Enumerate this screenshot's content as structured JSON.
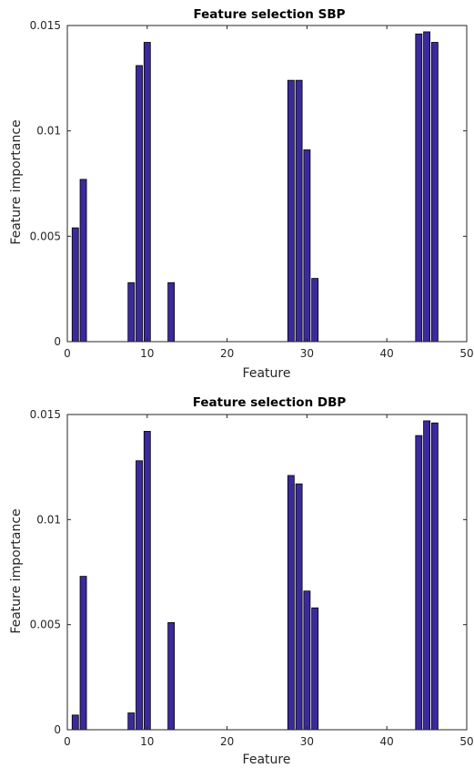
{
  "chart_data": [
    {
      "type": "bar",
      "title": "Feature selection SBP",
      "xlabel": "Feature",
      "ylabel": "Feature importance",
      "xlim": [
        0,
        50
      ],
      "ylim": [
        0,
        0.015
      ],
      "xticks": [
        0,
        10,
        20,
        30,
        40,
        50
      ],
      "yticks": [
        0,
        0.005,
        0.01,
        0.015
      ],
      "ytick_labels": [
        "0",
        "0.005",
        "0.01",
        "0.015"
      ],
      "grid": false,
      "bar_color": "#3a2a9c",
      "x": [
        1,
        2,
        8,
        9,
        10,
        13,
        28,
        29,
        30,
        31,
        44,
        45,
        46
      ],
      "values": [
        0.0054,
        0.0077,
        0.0028,
        0.0131,
        0.0142,
        0.0028,
        0.0124,
        0.0124,
        0.0091,
        0.003,
        0.0146,
        0.0147,
        0.0142
      ]
    },
    {
      "type": "bar",
      "title": "Feature selection DBP",
      "xlabel": "Feature",
      "ylabel": "Feature importance",
      "xlim": [
        0,
        50
      ],
      "ylim": [
        0,
        0.015
      ],
      "xticks": [
        0,
        10,
        20,
        30,
        40,
        50
      ],
      "yticks": [
        0,
        0.005,
        0.01,
        0.015
      ],
      "ytick_labels": [
        "0",
        "0.005",
        "0.01",
        "0.015"
      ],
      "grid": false,
      "bar_color": "#3a2a9c",
      "x": [
        1,
        2,
        8,
        9,
        10,
        13,
        28,
        29,
        30,
        31,
        44,
        45,
        46
      ],
      "values": [
        0.0007,
        0.0073,
        0.0008,
        0.0128,
        0.0142,
        0.0051,
        0.0121,
        0.0117,
        0.0066,
        0.0058,
        0.014,
        0.0147,
        0.0146
      ]
    }
  ]
}
